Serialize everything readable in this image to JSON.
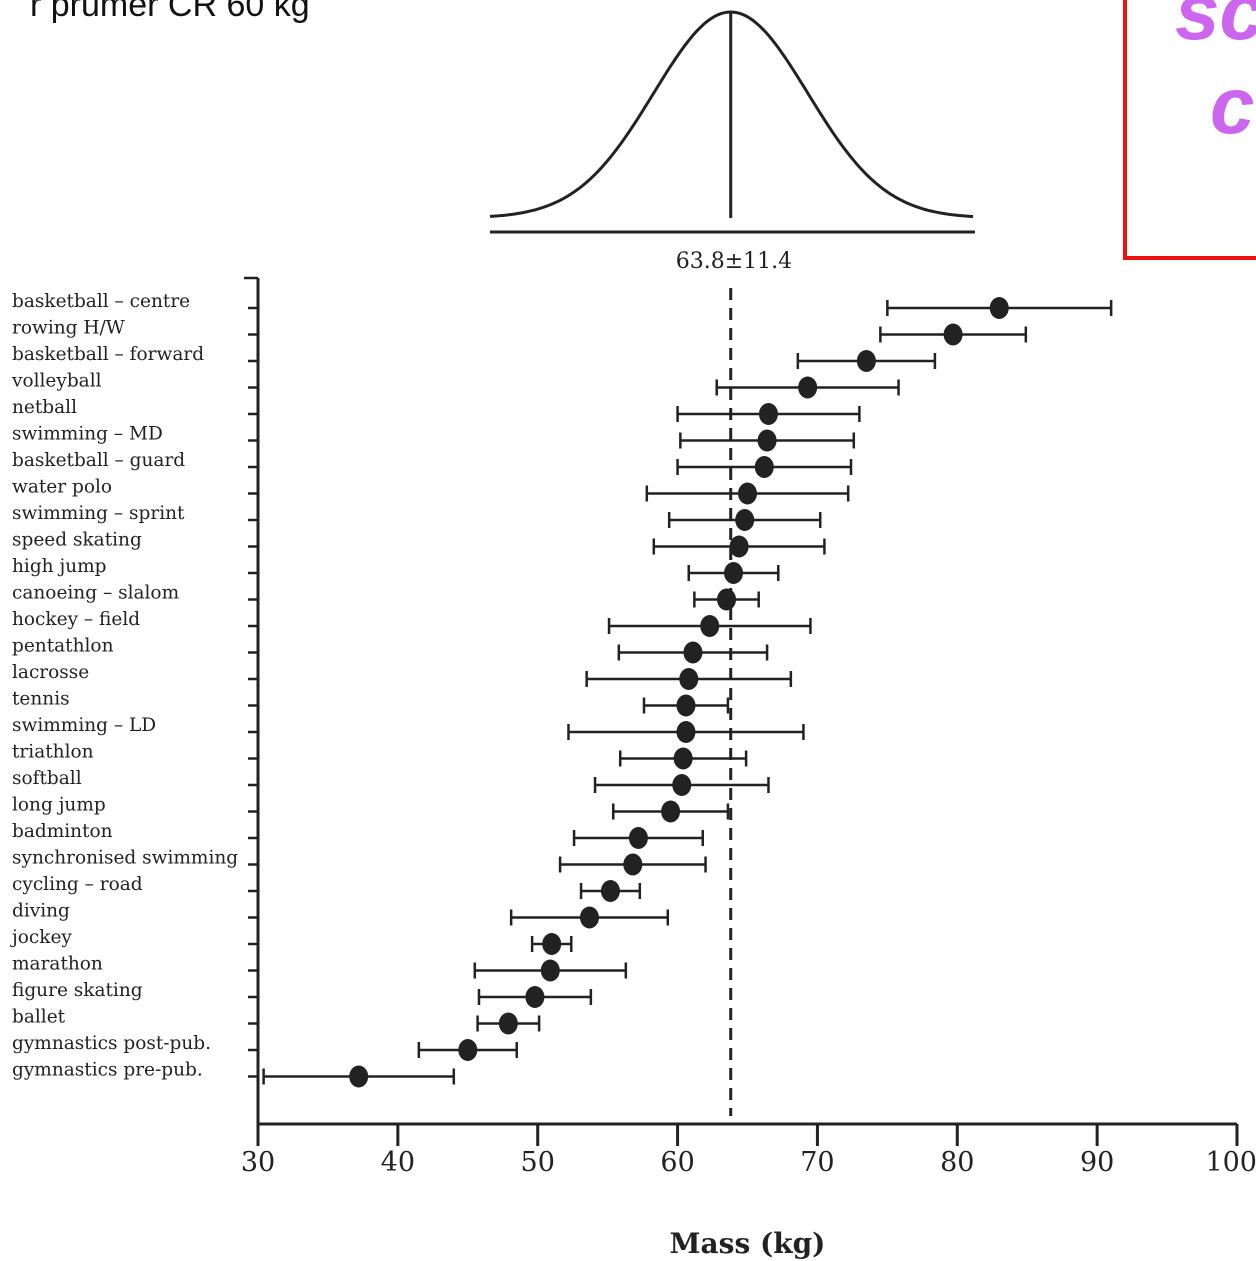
{
  "header": {
    "top_text": "r průměr ČR 60 kg",
    "box_line1": "sc",
    "box_line2": "c"
  },
  "colors": {
    "ink": "#222222",
    "box_border": "#ee1111",
    "box_text": "#cc66ee"
  },
  "chart_data": {
    "type": "scatter",
    "style": "error-bar dot plot (mean ± SD per sport)",
    "xlabel": "Mass (kg)",
    "ylabel": "",
    "xlim": [
      30,
      100
    ],
    "xticks": [
      30,
      40,
      50,
      60,
      70,
      80,
      90,
      100
    ],
    "reference": {
      "value": 63.8,
      "label": "63.8±11.4"
    },
    "categories": [
      "basketball – centre",
      "rowing H/W",
      "basketball – forward",
      "volleyball",
      "netball",
      "swimming – MD",
      "basketball – guard",
      "water polo",
      "swimming – sprint",
      "speed skating",
      "high jump",
      "canoeing – slalom",
      "hockey – field",
      "pentathlon",
      "lacrosse",
      "tennis",
      "swimming – LD",
      "triathlon",
      "softball",
      "long jump",
      "badminton",
      "synchronised swimming",
      "cycling – road",
      "diving",
      "jockey",
      "marathon",
      "figure skating",
      "ballet",
      "gymnastics post-pub.",
      "gymnastics pre-pub."
    ],
    "mean": [
      83.0,
      79.7,
      73.5,
      69.3,
      66.5,
      66.4,
      66.2,
      65.0,
      64.8,
      64.4,
      64.0,
      63.5,
      62.3,
      61.1,
      60.8,
      60.6,
      60.6,
      60.4,
      60.3,
      59.5,
      57.2,
      56.8,
      55.2,
      53.7,
      51.0,
      50.9,
      49.8,
      47.9,
      45.0,
      37.2
    ],
    "sd": [
      8.0,
      5.2,
      4.9,
      6.5,
      6.5,
      6.2,
      6.2,
      7.2,
      5.4,
      6.1,
      3.2,
      2.3,
      7.2,
      5.3,
      7.3,
      3.0,
      8.4,
      4.5,
      6.2,
      4.1,
      4.6,
      5.2,
      2.1,
      5.6,
      1.4,
      5.4,
      4.0,
      2.2,
      3.5,
      6.8
    ]
  }
}
